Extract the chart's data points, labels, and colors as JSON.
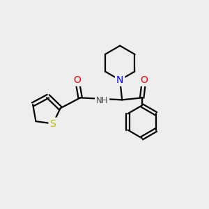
{
  "background_color": "#eeeeee",
  "atom_colors": {
    "C": "#000000",
    "N": "#0000ff",
    "O": "#ff0000",
    "S": "#bbbb00",
    "H": "#444444"
  },
  "bond_color": "#000000",
  "bond_width": 1.6,
  "font_size_atoms": 10,
  "font_size_small": 8.5
}
